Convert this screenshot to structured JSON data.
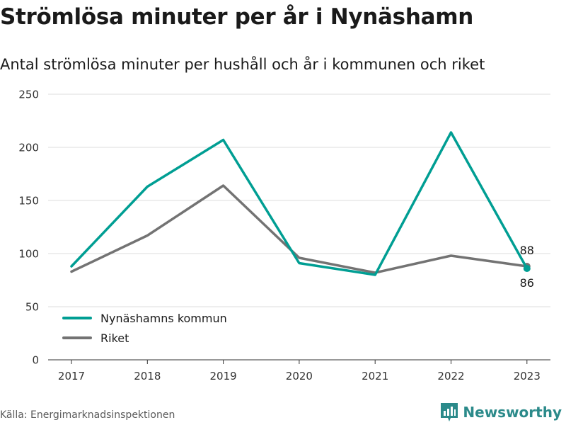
{
  "header": {
    "title": "Strömlösa minuter per år i Nynäshamn",
    "subtitle": "Antal strömlösa minuter per hushåll och år i kommunen och riket"
  },
  "footer": {
    "source": "Källa: Energimarknadsinspektionen",
    "brand": "Newsworthy",
    "brand_icon": "newsworthy-logo-icon"
  },
  "chart_data": {
    "type": "line",
    "x": [
      "2017",
      "2018",
      "2019",
      "2020",
      "2021",
      "2022",
      "2023"
    ],
    "ylim": [
      0,
      250
    ],
    "yticks": [
      0,
      50,
      100,
      150,
      200,
      250
    ],
    "grid": true,
    "legend_position": "bottom-left",
    "series": [
      {
        "name": "Nynäshamns kommun",
        "color": "#009e93",
        "values": [
          88,
          163,
          207,
          91,
          80,
          214,
          86
        ]
      },
      {
        "name": "Riket",
        "color": "#737373",
        "values": [
          83,
          117,
          164,
          96,
          82,
          98,
          88
        ]
      }
    ],
    "end_labels": {
      "upper": "88",
      "lower": "86"
    }
  }
}
